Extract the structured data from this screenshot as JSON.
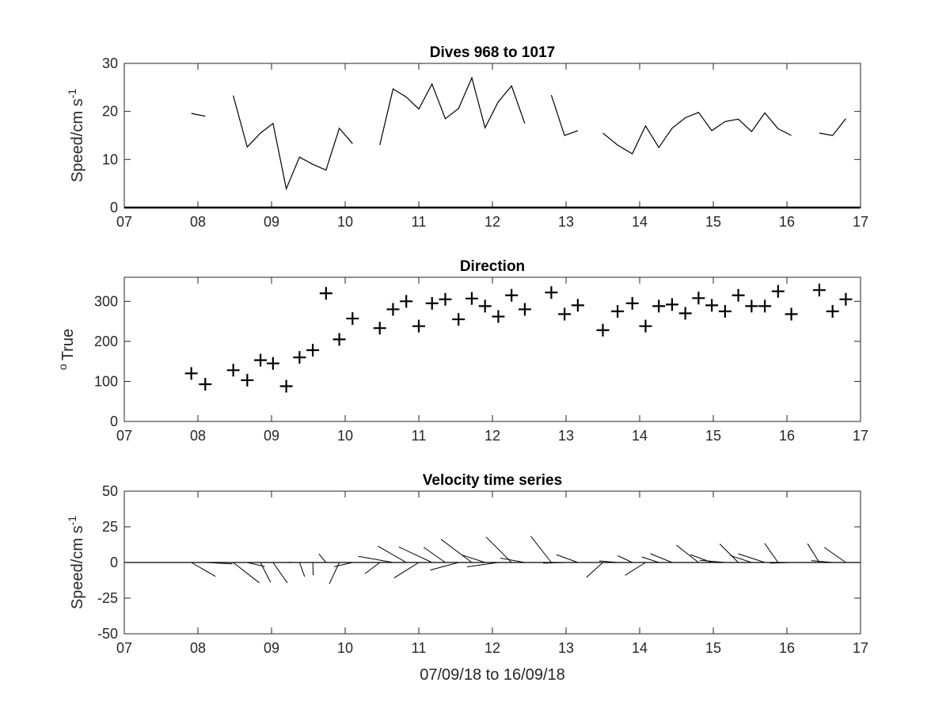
{
  "chart_data": [
    {
      "type": "line",
      "title": "Dives 968 to 1017",
      "xlabel": "",
      "ylabel": "Speed/cm s",
      "ylabel_superscript": "-1",
      "xlim": [
        7,
        17
      ],
      "ylim": [
        0,
        30
      ],
      "xticks": [
        "07",
        "08",
        "09",
        "10",
        "11",
        "12",
        "13",
        "14",
        "15",
        "16",
        "17"
      ],
      "yticks": [
        "0",
        "10",
        "20",
        "30"
      ],
      "x": [
        7.91,
        8.1,
        8.48,
        8.67,
        8.85,
        9.02,
        9.2,
        9.38,
        9.56,
        9.74,
        9.92,
        10.1,
        10.47,
        10.65,
        10.83,
        11.0,
        11.18,
        11.36,
        11.54,
        11.72,
        11.9,
        12.08,
        12.26,
        12.44,
        12.8,
        12.98,
        13.16,
        13.5,
        13.7,
        13.9,
        14.08,
        14.26,
        14.44,
        14.62,
        14.8,
        14.98,
        15.16,
        15.34,
        15.52,
        15.7,
        15.88,
        16.06,
        16.44,
        16.62,
        16.8
      ],
      "y": [
        19.6,
        19.0,
        23.3,
        12.6,
        15.5,
        17.5,
        3.9,
        10.5,
        9.0,
        7.8,
        16.5,
        13.3,
        13.0,
        24.7,
        23.0,
        20.5,
        25.7,
        18.5,
        20.6,
        27.0,
        16.6,
        22.0,
        25.3,
        17.5,
        23.4,
        15.0,
        16.0,
        15.5,
        13.0,
        11.2,
        17.0,
        12.5,
        16.5,
        18.7,
        19.8,
        16.0,
        17.9,
        18.4,
        15.8,
        19.7,
        16.4,
        15.0,
        15.5,
        15.0,
        18.5
      ],
      "segments": [
        [
          0,
          1
        ],
        [
          2,
          11
        ],
        [
          12,
          23
        ],
        [
          24,
          26
        ],
        [
          27,
          41
        ],
        [
          42,
          44
        ]
      ]
    },
    {
      "type": "scatter",
      "title": "Direction",
      "xlabel": "",
      "ylabel": "True",
      "ylabel_superscript": "o",
      "xlim": [
        7,
        17
      ],
      "ylim": [
        0,
        360
      ],
      "xticks": [
        "07",
        "08",
        "09",
        "10",
        "11",
        "12",
        "13",
        "14",
        "15",
        "16",
        "17"
      ],
      "yticks": [
        "0",
        "100",
        "200",
        "300"
      ],
      "marker": "+",
      "x": [
        7.91,
        8.1,
        8.48,
        8.67,
        8.85,
        9.02,
        9.2,
        9.38,
        9.56,
        9.74,
        9.92,
        10.1,
        10.47,
        10.65,
        10.83,
        11.0,
        11.18,
        11.36,
        11.54,
        11.72,
        11.9,
        12.08,
        12.26,
        12.44,
        12.8,
        12.98,
        13.16,
        13.5,
        13.7,
        13.9,
        14.08,
        14.26,
        14.44,
        14.62,
        14.8,
        14.98,
        15.16,
        15.34,
        15.52,
        15.7,
        15.88,
        16.06,
        16.44,
        16.62,
        16.8
      ],
      "y": [
        120,
        93,
        128,
        103,
        153,
        145,
        88,
        160,
        178,
        320,
        205,
        257,
        233,
        280,
        300,
        238,
        295,
        305,
        255,
        307,
        288,
        262,
        315,
        280,
        322,
        268,
        290,
        228,
        275,
        295,
        238,
        288,
        292,
        270,
        308,
        290,
        275,
        315,
        288,
        288,
        325,
        268,
        328,
        275,
        305
      ]
    },
    {
      "type": "vector",
      "title": "Velocity time series",
      "xlabel": "07/09/18 to 16/09/18",
      "ylabel": "Speed/cm s",
      "ylabel_superscript": "-1",
      "xlim": [
        7,
        17
      ],
      "ylim": [
        -50,
        50
      ],
      "xticks": [
        "07",
        "08",
        "09",
        "10",
        "11",
        "12",
        "13",
        "14",
        "15",
        "16",
        "17"
      ],
      "yticks": [
        "50",
        "25",
        "0",
        "-25",
        "-50"
      ],
      "x": [
        7.91,
        8.1,
        8.48,
        8.67,
        8.85,
        9.02,
        9.2,
        9.38,
        9.56,
        9.74,
        9.92,
        10.1,
        10.47,
        10.65,
        10.83,
        11.0,
        11.18,
        11.36,
        11.54,
        11.72,
        11.9,
        12.08,
        12.26,
        12.44,
        12.8,
        12.98,
        13.16,
        13.5,
        13.7,
        13.9,
        14.08,
        14.26,
        14.44,
        14.62,
        14.8,
        14.98,
        15.16,
        15.34,
        15.52,
        15.7,
        15.88,
        16.06,
        16.44,
        16.62,
        16.8
      ],
      "speed": [
        19.6,
        19.0,
        23.3,
        12.6,
        15.5,
        17.5,
        3.9,
        10.5,
        9.0,
        7.8,
        16.5,
        13.3,
        13.0,
        24.7,
        23.0,
        20.5,
        25.7,
        18.5,
        20.6,
        27.0,
        16.6,
        22.0,
        25.3,
        17.5,
        23.4,
        15.0,
        16.0,
        15.5,
        13.0,
        11.2,
        17.0,
        12.5,
        16.5,
        18.7,
        19.8,
        16.0,
        17.9,
        18.4,
        15.8,
        19.7,
        16.4,
        15.0,
        15.5,
        15.0,
        18.5
      ],
      "direction_deg_true": [
        120,
        93,
        128,
        103,
        153,
        145,
        88,
        160,
        178,
        320,
        205,
        257,
        233,
        280,
        300,
        238,
        295,
        305,
        255,
        307,
        288,
        262,
        315,
        280,
        322,
        268,
        290,
        228,
        275,
        295,
        238,
        288,
        292,
        270,
        308,
        290,
        275,
        315,
        288,
        288,
        325,
        268,
        328,
        275,
        305
      ]
    }
  ]
}
